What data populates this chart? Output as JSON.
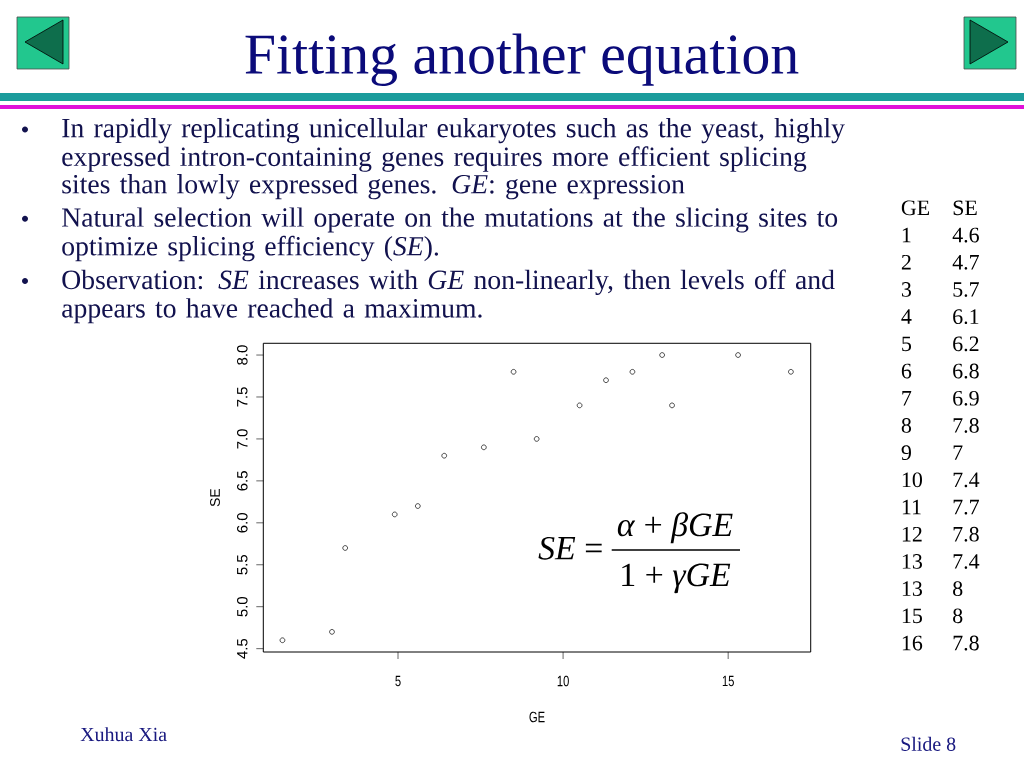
{
  "chart_data": {
    "type": "scatter",
    "title": "Fitting another equation",
    "xlabel": "GE",
    "ylabel": "SE",
    "x": [
      1.5,
      3.0,
      3.4,
      4.9,
      5.6,
      6.4,
      7.6,
      8.5,
      9.2,
      10.5,
      11.3,
      12.1,
      13.0,
      13.3,
      15.3,
      16.9
    ],
    "values": [
      4.6,
      4.7,
      5.7,
      6.1,
      6.2,
      6.8,
      6.9,
      7.8,
      7.0,
      7.4,
      7.7,
      7.8,
      8.0,
      7.4,
      8.0,
      7.8
    ],
    "color": "#000000",
    "marker": "circle",
    "xlim": [
      0.92,
      17.5
    ],
    "ylim": [
      4.46,
      8.14
    ],
    "xticks": [
      5,
      10,
      15
    ],
    "yticks": [
      4.5,
      {
        "value": 5,
        "label": "5.0"
      },
      5.5,
      {
        "value": 6,
        "label": "6.0"
      },
      6.5,
      {
        "value": 7,
        "label": "7.0"
      },
      7.5,
      {
        "value": 8,
        "label": "8.0"
      }
    ],
    "annotations": [
      "In rapidly replicating unicellular eukaryotes such as the yeast, highly expressed intron-containing genes requires more efficient splicing sites than lowly expressed genes. *GE*: gene expression",
      "Natural selection will operate on the mutations at the slicing sites to optimize splicing efficiency (*SE*).",
      "Observation: *SE* increases with *GE* non-linearly, then levels off and appears to have reached a maximum.",
      "*SE* =",
      "*α* + *βGE*",
      "1 + *γGE*",
      "GE",
      "SE",
      "1",
      "4.6",
      "2",
      "4.7",
      "3",
      "5.7",
      "4",
      "6.1",
      "5",
      "6.2",
      "6",
      "6.8",
      "7",
      "6.9",
      "8",
      "7.8",
      "9",
      "7",
      "10",
      "7.4",
      "11",
      "7.7",
      "12",
      "7.8",
      "13",
      "7.4",
      "13",
      "8",
      "15",
      "8",
      "16",
      "7.8",
      "Xuhua Xia",
      "Slide 8"
    ]
  }
}
